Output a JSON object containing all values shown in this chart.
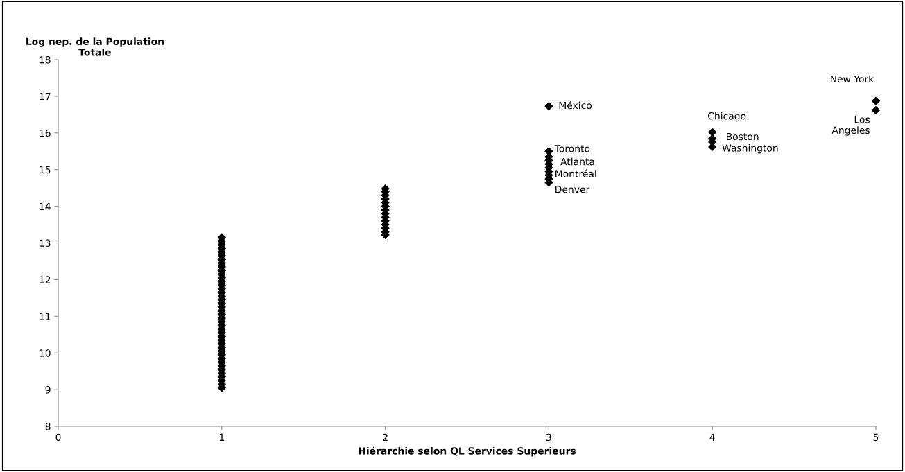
{
  "chart_data": {
    "type": "scatter",
    "xlabel": "Hiérarchie selon QL Services Superieurs",
    "ylabel": "Log nep. de la Population\nTotale",
    "series": [
      {
        "color": "#000000",
        "x": [
          1,
          1,
          1,
          1,
          1,
          1,
          1,
          1,
          1,
          1,
          1,
          1,
          1,
          1,
          1,
          1,
          1,
          1,
          1,
          1,
          1,
          1,
          1,
          1,
          1,
          1,
          1,
          1,
          1,
          1,
          1,
          1,
          1,
          1,
          1,
          1,
          1,
          1,
          1,
          1,
          1,
          1,
          2,
          2,
          2,
          2,
          2,
          2,
          2,
          2,
          2,
          2,
          2,
          2,
          2,
          2,
          3,
          3,
          3,
          3,
          3,
          3,
          3,
          3,
          3,
          3,
          4,
          4,
          4,
          4,
          5,
          5
        ],
        "values": [
          9.05,
          9.15,
          9.25,
          9.35,
          9.45,
          9.55,
          9.65,
          9.75,
          9.85,
          9.95,
          10.05,
          10.15,
          10.25,
          10.35,
          10.45,
          10.55,
          10.65,
          10.75,
          10.85,
          10.95,
          11.05,
          11.15,
          11.25,
          11.35,
          11.45,
          11.55,
          11.65,
          11.75,
          11.85,
          11.95,
          12.05,
          12.15,
          12.25,
          12.35,
          12.45,
          12.55,
          12.65,
          12.75,
          12.85,
          12.95,
          13.05,
          13.15,
          13.22,
          13.3,
          13.4,
          13.5,
          13.6,
          13.7,
          13.8,
          13.9,
          14.0,
          14.1,
          14.2,
          14.3,
          14.4,
          14.48,
          14.65,
          14.75,
          14.85,
          14.95,
          15.05,
          15.15,
          15.25,
          15.35,
          15.5,
          16.73,
          16.02,
          15.85,
          15.75,
          15.62,
          16.87,
          16.62
        ]
      }
    ],
    "xlim": [
      0,
      5
    ],
    "xticks": [
      0,
      1,
      2,
      3,
      4,
      5
    ],
    "ylim": [
      8,
      18
    ],
    "yticks": [
      8,
      9,
      10,
      11,
      12,
      13,
      14,
      15,
      16,
      17,
      18
    ],
    "marker": "diamond",
    "grid": false,
    "annotations": [
      {
        "text": "México",
        "x": 3,
        "y": 16.73
      },
      {
        "text": "Toronto",
        "x": 3,
        "y": 15.5
      },
      {
        "text": "Atlanta",
        "x": 3,
        "y": 15.3
      },
      {
        "text": "Montréal",
        "x": 3,
        "y": 15.05
      },
      {
        "text": "Denver",
        "x": 3,
        "y": 14.65
      },
      {
        "text": "Chicago",
        "x": 4,
        "y": 16.02
      },
      {
        "text": "Boston",
        "x": 4,
        "y": 15.8
      },
      {
        "text": "Washington",
        "x": 4,
        "y": 15.62
      },
      {
        "text": "New York",
        "x": 5,
        "y": 16.87
      },
      {
        "text": "Los\nAngeles",
        "x": 5,
        "y": 16.62
      }
    ]
  }
}
